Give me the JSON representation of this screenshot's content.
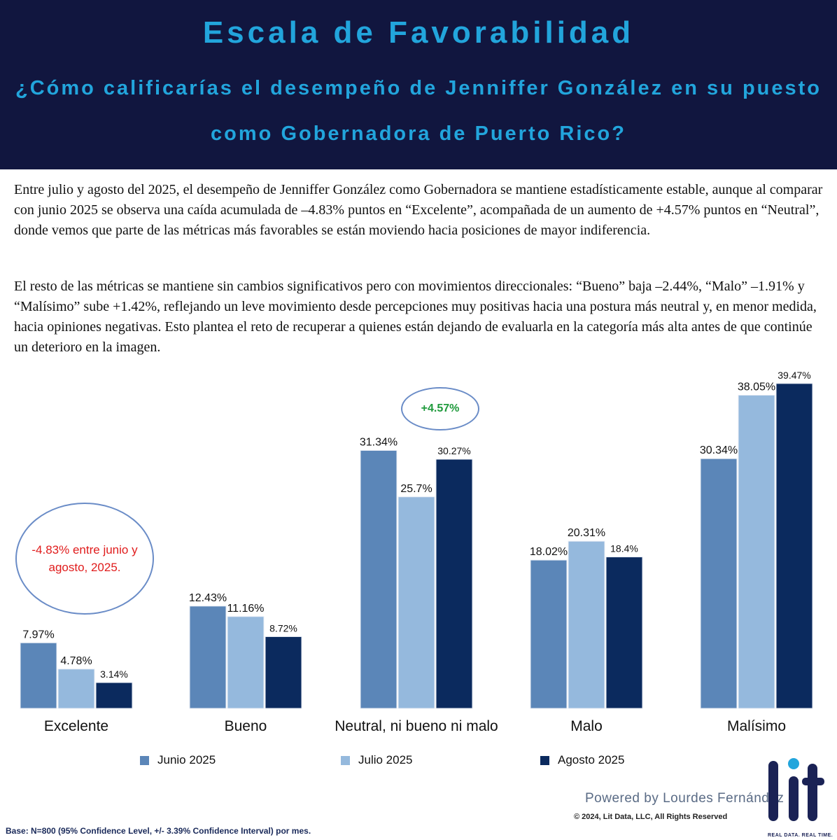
{
  "header": {
    "title": "Escala de Favorabilidad",
    "question_line1": "¿Cómo calificarías el desempeño de Jenniffer González en su puesto",
    "question_line2": "como Gobernadora de Puerto Rico?"
  },
  "paragraph1": "Entre julio y agosto del 2025,  el desempeño de Jenniffer González como Gobernadora se mantiene estadísticamente estable, aunque al comparar con junio 2025 se observa una caída acumulada de –4.83% puntos en “Excelente”, acompañada de un aumento de +4.57% puntos en “Neutral”, donde vemos que parte de las métricas más favorables se están moviendo hacia posiciones de mayor indiferencia.",
  "paragraph2": "El resto de las métricas se mantiene sin cambios significativos pero con movimientos direccionales: “Bueno” baja –2.44%, “Malo” –1.91% y “Malísimo” sube +1.42%, reflejando un leve movimiento desde percepciones muy positivas hacia una postura más neutral y, en menor medida, hacia opiniones negativas. Esto plantea el reto de recuperar a quienes están dejando de evaluarla en la categoría más alta antes de que continúe un deterioro en la imagen.",
  "annotations": {
    "excelente_note": "-4.83% entre junio y agosto, 2025.",
    "neutral_note": "+4.57%"
  },
  "chart_data": {
    "type": "bar",
    "categories": [
      "Excelente",
      "Bueno",
      "Neutral, ni bueno ni malo",
      "Malo",
      "Malísimo"
    ],
    "series": [
      {
        "name": "Junio 2025",
        "color": "#5b86b8",
        "values": [
          7.97,
          12.43,
          31.34,
          18.02,
          30.34
        ],
        "labels": [
          "7.97%",
          "12.43%",
          "31.34%",
          "18.02%",
          "30.34%"
        ]
      },
      {
        "name": "Julio 2025",
        "color": "#95b9dd",
        "values": [
          4.78,
          11.16,
          25.7,
          20.31,
          38.05
        ],
        "labels": [
          "4.78%",
          "11.16%",
          "25.7%",
          "20.31%",
          "38.05%"
        ]
      },
      {
        "name": "Agosto 2025",
        "color": "#0b2a5e",
        "values": [
          3.14,
          8.72,
          30.27,
          18.4,
          39.47
        ],
        "labels": [
          "3.14%",
          "8.72%",
          "30.27%",
          "18.4%",
          "39.47%"
        ]
      }
    ],
    "legend_position": "bottom"
  },
  "footer": {
    "powered": "Powered by Lourdes Fernández",
    "copyright": "© 2024, Lit Data, LLC, All Rights Reserved",
    "base": "Base: N=800 (95% Confidence Level, +/- 3.39% Confidence Interval) por mes.",
    "logo_text": "lit",
    "tagline": "REAL DATA. REAL TIME."
  }
}
